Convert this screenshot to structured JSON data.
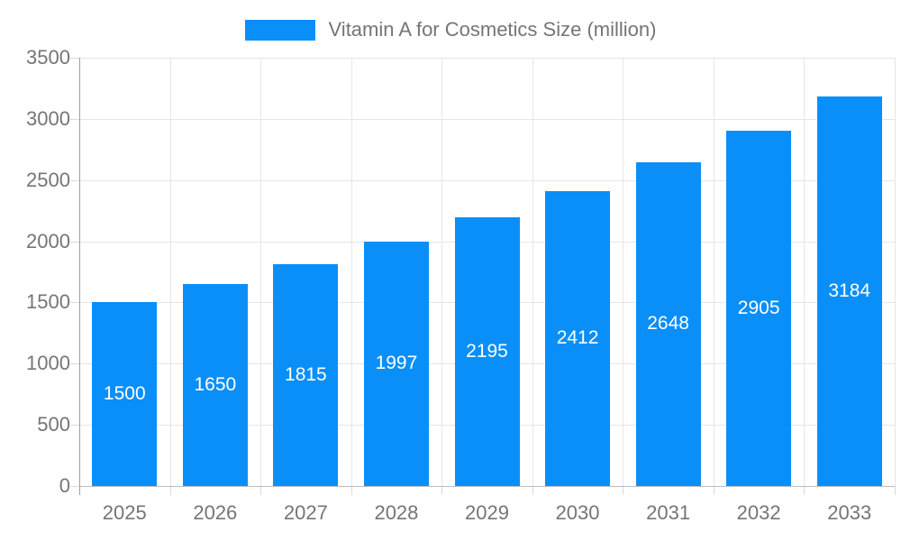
{
  "legend": {
    "label": "Vitamin A for Cosmetics Size (million)"
  },
  "colors": {
    "bar": "#0a8ff9",
    "axis_text": "#757575",
    "bar_value_text": "#ffffff"
  },
  "chart_data": {
    "type": "bar",
    "title": "Vitamin A for Cosmetics Size (million)",
    "categories": [
      "2025",
      "2026",
      "2027",
      "2028",
      "2029",
      "2030",
      "2031",
      "2032",
      "2033"
    ],
    "series": [
      {
        "name": "Vitamin A for Cosmetics Size (million)",
        "values": [
          1500,
          1650,
          1815,
          1997,
          2195,
          2412,
          2648,
          2905,
          3184
        ]
      }
    ],
    "bar_labels": [
      1500,
      1650,
      1815,
      1997,
      2195,
      2412,
      2648,
      2905,
      3184
    ],
    "bar_label_position": "inside-center",
    "xlabel": "",
    "ylabel": "",
    "ylim": [
      0,
      3500
    ],
    "ytick_step": 500,
    "yticks": [
      0,
      500,
      1000,
      1500,
      2000,
      2500,
      3000,
      3500
    ],
    "grid": true,
    "legend_position": "top-center"
  }
}
